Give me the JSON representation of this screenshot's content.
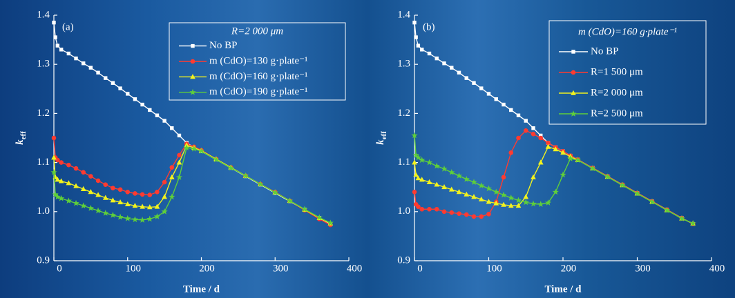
{
  "chart_data": [
    {
      "type": "line",
      "panel_label": "(a)",
      "xlabel": "Time / d",
      "ylabel": {
        "main": "k",
        "sub": "eff"
      },
      "legend_title": "R=2 000 μm",
      "xlim": [
        0,
        400
      ],
      "xticks": [
        0,
        100,
        200,
        300,
        400
      ],
      "ylim": [
        0.9,
        1.4
      ],
      "yticks": [
        0.9,
        {
          "value": 1,
          "label": "1.0"
        },
        1.1,
        1.2,
        1.3,
        1.4
      ],
      "x": [
        0,
        2,
        5,
        10,
        20,
        30,
        40,
        50,
        60,
        70,
        80,
        90,
        100,
        110,
        120,
        130,
        140,
        150,
        160,
        170,
        180,
        190,
        200,
        220,
        240,
        260,
        280,
        300,
        320,
        340,
        360,
        375
      ],
      "series": [
        {
          "name": "No BP",
          "color": "#ffffff",
          "marker": "square",
          "values": [
            1.385,
            1.355,
            1.338,
            1.33,
            1.322,
            1.312,
            1.302,
            1.293,
            1.283,
            1.272,
            1.262,
            1.251,
            1.24,
            1.229,
            1.218,
            1.207,
            1.196,
            1.185,
            1.17,
            1.155,
            1.14,
            1.131,
            1.123,
            1.106,
            1.089,
            1.072,
            1.055,
            1.038,
            1.021,
            1.004,
            0.987,
            0.975
          ]
        },
        {
          "name": "m (CdO)=130 g·plate⁻¹",
          "color": "#ff3b30",
          "marker": "circle",
          "values": [
            1.15,
            1.11,
            1.105,
            1.1,
            1.095,
            1.088,
            1.08,
            1.072,
            1.063,
            1.055,
            1.048,
            1.045,
            1.04,
            1.037,
            1.035,
            1.034,
            1.04,
            1.06,
            1.09,
            1.115,
            1.138,
            1.132,
            1.125,
            1.107,
            1.09,
            1.073,
            1.056,
            1.04,
            1.022,
            1.003,
            0.985,
            0.973
          ]
        },
        {
          "name": "m (CdO)=160 g·plate⁻¹",
          "color": "#f2f21e",
          "marker": "triangle",
          "values": [
            1.11,
            1.07,
            1.065,
            1.062,
            1.058,
            1.052,
            1.046,
            1.04,
            1.034,
            1.028,
            1.023,
            1.019,
            1.015,
            1.012,
            1.01,
            1.009,
            1.01,
            1.03,
            1.07,
            1.1,
            1.135,
            1.13,
            1.124,
            1.107,
            1.09,
            1.073,
            1.056,
            1.039,
            1.022,
            1.004,
            0.987,
            0.976
          ]
        },
        {
          "name": "m (CdO)=190 g·plate⁻¹",
          "color": "#5fcf3a",
          "marker": "star",
          "values": [
            1.08,
            1.035,
            1.03,
            1.027,
            1.022,
            1.017,
            1.012,
            1.007,
            1.002,
            0.997,
            0.993,
            0.989,
            0.986,
            0.984,
            0.983,
            0.985,
            0.99,
            1.0,
            1.03,
            1.07,
            1.13,
            1.128,
            1.123,
            1.106,
            1.089,
            1.073,
            1.056,
            1.039,
            1.022,
            1.005,
            0.988,
            0.977
          ]
        }
      ]
    },
    {
      "type": "line",
      "panel_label": "(b)",
      "xlabel": "Time / d",
      "ylabel": {
        "main": "k",
        "sub": "eff"
      },
      "legend_title": "m (CdO)=160 g·plate⁻¹",
      "xlim": [
        0,
        400
      ],
      "xticks": [
        0,
        100,
        200,
        300,
        400
      ],
      "ylim": [
        0.9,
        1.4
      ],
      "yticks": [
        0.9,
        {
          "value": 1,
          "label": "1.0"
        },
        1.1,
        1.2,
        1.3,
        1.4
      ],
      "x": [
        0,
        2,
        5,
        10,
        20,
        30,
        40,
        50,
        60,
        70,
        80,
        90,
        100,
        110,
        120,
        130,
        140,
        150,
        160,
        170,
        180,
        190,
        200,
        210,
        220,
        240,
        260,
        280,
        300,
        320,
        340,
        360,
        375
      ],
      "series": [
        {
          "name": "No BP",
          "color": "#ffffff",
          "marker": "square",
          "values": [
            1.385,
            1.355,
            1.338,
            1.33,
            1.322,
            1.312,
            1.302,
            1.293,
            1.283,
            1.272,
            1.262,
            1.251,
            1.24,
            1.229,
            1.218,
            1.207,
            1.196,
            1.185,
            1.17,
            1.155,
            1.14,
            1.131,
            1.123,
            1.114,
            1.106,
            1.089,
            1.072,
            1.055,
            1.038,
            1.021,
            1.004,
            0.987,
            0.975
          ]
        },
        {
          "name": "R=1 500 μm",
          "color": "#ff3b30",
          "marker": "circle",
          "values": [
            1.04,
            1.015,
            1.01,
            1.005,
            1.005,
            1.005,
            1.0,
            0.998,
            0.996,
            0.994,
            0.99,
            0.99,
            0.995,
            1.02,
            1.07,
            1.12,
            1.15,
            1.165,
            1.158,
            1.15,
            1.14,
            1.131,
            1.123,
            1.114,
            1.106,
            1.089,
            1.072,
            1.055,
            1.038,
            1.021,
            1.004,
            0.987,
            0.975
          ]
        },
        {
          "name": "R=2 000 μm",
          "color": "#f2f21e",
          "marker": "triangle",
          "values": [
            1.1,
            1.075,
            1.068,
            1.065,
            1.06,
            1.055,
            1.05,
            1.045,
            1.04,
            1.035,
            1.03,
            1.025,
            1.02,
            1.017,
            1.014,
            1.012,
            1.012,
            1.03,
            1.07,
            1.1,
            1.132,
            1.127,
            1.12,
            1.112,
            1.105,
            1.088,
            1.071,
            1.054,
            1.037,
            1.02,
            1.003,
            0.986,
            0.976
          ]
        },
        {
          "name": "R=2 500 μm",
          "color": "#5fcf3a",
          "marker": "star",
          "values": [
            1.155,
            1.115,
            1.11,
            1.105,
            1.1,
            1.093,
            1.087,
            1.08,
            1.073,
            1.066,
            1.06,
            1.053,
            1.047,
            1.04,
            1.034,
            1.028,
            1.023,
            1.019,
            1.016,
            1.015,
            1.018,
            1.04,
            1.075,
            1.108,
            1.105,
            1.088,
            1.071,
            1.054,
            1.037,
            1.02,
            1.003,
            0.986,
            0.976
          ]
        }
      ]
    }
  ]
}
